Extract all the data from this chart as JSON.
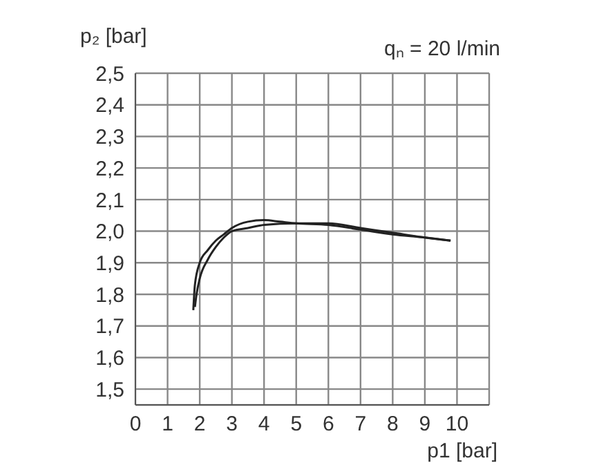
{
  "chart_data": {
    "type": "line",
    "title": "qₙ = 20 l/min",
    "xlabel": "p1 [bar]",
    "ylabel": "p₂ [bar]",
    "xlim": [
      0,
      11
    ],
    "xticks": [
      0,
      1,
      2,
      3,
      4,
      5,
      6,
      7,
      8,
      9,
      10,
      {
        "value": 11,
        "label": null
      }
    ],
    "ylim": [
      1.45,
      2.5
    ],
    "yticks": [
      {
        "value": 1.5,
        "label": "1,5"
      },
      {
        "value": 1.6,
        "label": "1,6"
      },
      {
        "value": 1.7,
        "label": "1,7"
      },
      {
        "value": 1.8,
        "label": "1,8"
      },
      {
        "value": 1.9,
        "label": "1,9"
      },
      {
        "value": 2.0,
        "label": "2,0"
      },
      {
        "value": 2.1,
        "label": "2,1"
      },
      {
        "value": 2.2,
        "label": "2,2"
      },
      {
        "value": 2.3,
        "label": "2,3"
      },
      {
        "value": 2.4,
        "label": "2,4"
      },
      {
        "value": 2.5,
        "label": "2,5"
      }
    ],
    "grid": true,
    "marker": "none",
    "line_style": "solid",
    "series": [
      {
        "color": "#222222",
        "x": [
          1.8,
          1.85,
          2,
          2.25,
          2.5,
          2.75,
          3,
          3.5,
          4,
          4.5,
          5,
          6,
          7,
          8,
          9,
          9.8
        ],
        "values": [
          1.75,
          1.83,
          1.9,
          1.94,
          1.97,
          1.99,
          2.01,
          2.03,
          2.035,
          2.03,
          2.025,
          2.02,
          2.005,
          1.99,
          1.98,
          1.97
        ]
      },
      {
        "color": "#222222",
        "x": [
          1.85,
          1.9,
          2,
          2.25,
          2.5,
          2.75,
          3,
          3.5,
          4,
          5,
          6,
          7,
          8,
          9,
          9.8
        ],
        "values": [
          1.76,
          1.8,
          1.85,
          1.91,
          1.95,
          1.98,
          2.0,
          2.01,
          2.02,
          2.025,
          2.025,
          2.01,
          1.995,
          1.98,
          1.97
        ]
      }
    ]
  }
}
